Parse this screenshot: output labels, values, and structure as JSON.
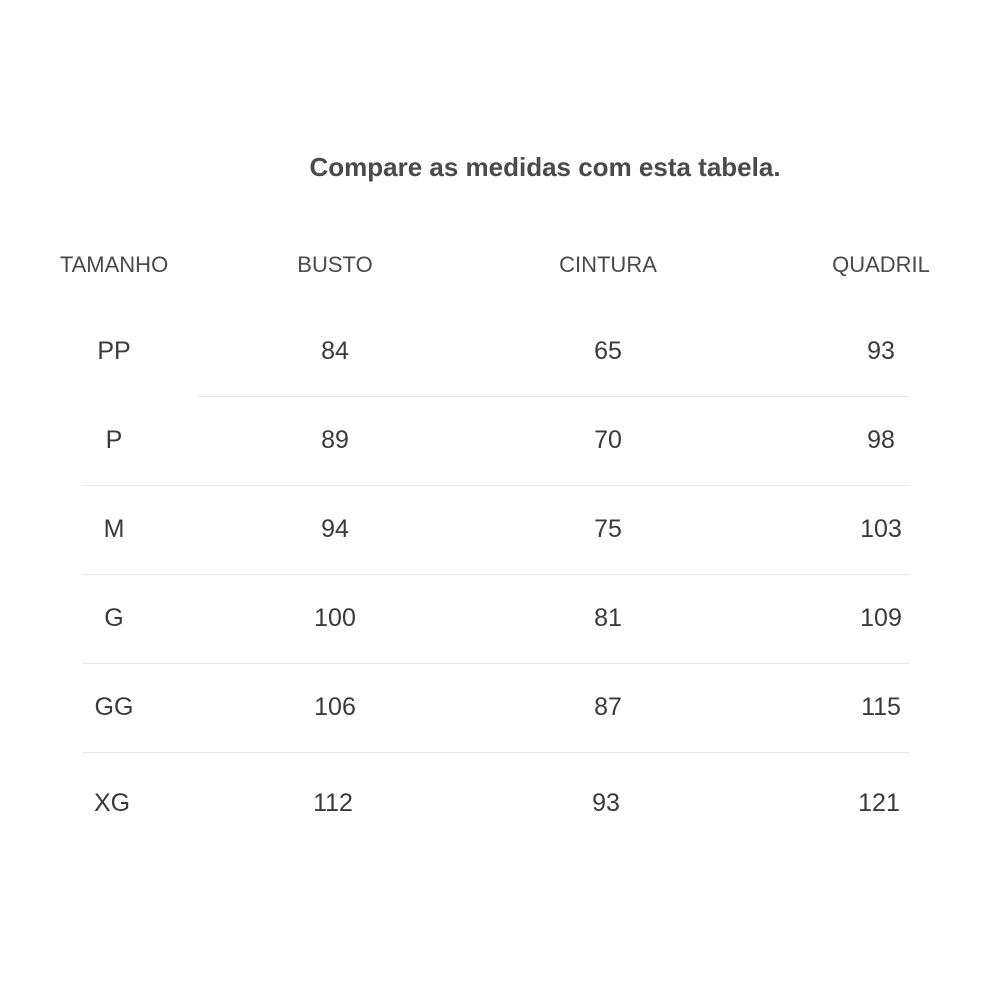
{
  "title": "Compare as medidas com esta tabela.",
  "table": {
    "headers": [
      "TAMANHO",
      "BUSTO",
      "CINTURA",
      "QUADRIL"
    ],
    "rows": [
      [
        "PP",
        "84",
        "65",
        "93"
      ],
      [
        "P",
        "89",
        "70",
        "98"
      ],
      [
        "M",
        "94",
        "75",
        "103"
      ],
      [
        "G",
        "100",
        "81",
        "109"
      ],
      [
        "GG",
        "106",
        "87",
        "115"
      ],
      [
        "XG",
        "112",
        "93",
        "121"
      ]
    ]
  }
}
